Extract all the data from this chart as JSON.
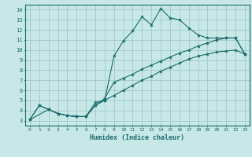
{
  "title": "",
  "xlabel": "Humidex (Indice chaleur)",
  "bg_color": "#c8e8e8",
  "grid_color": "#a0c8c8",
  "line_color": "#1a6b6b",
  "spine_color": "#1a6b6b",
  "xlim": [
    -0.5,
    23.5
  ],
  "ylim": [
    2.5,
    14.5
  ],
  "xticks": [
    0,
    1,
    2,
    3,
    4,
    5,
    6,
    7,
    8,
    9,
    10,
    11,
    12,
    13,
    14,
    15,
    16,
    17,
    18,
    19,
    20,
    21,
    22,
    23
  ],
  "yticks": [
    3,
    4,
    5,
    6,
    7,
    8,
    9,
    10,
    11,
    12,
    13,
    14
  ],
  "line1_x": [
    0,
    1,
    2,
    3,
    4,
    5,
    6,
    7,
    8,
    9,
    10,
    11,
    12,
    13,
    14,
    15,
    16,
    17,
    18,
    19,
    20,
    21,
    22,
    23
  ],
  "line1_y": [
    3.1,
    4.5,
    4.1,
    3.7,
    3.5,
    3.4,
    3.4,
    4.8,
    5.0,
    9.4,
    10.9,
    11.9,
    13.3,
    12.5,
    14.1,
    13.2,
    13.0,
    12.2,
    11.5,
    11.2,
    11.2,
    11.2,
    11.2,
    9.6
  ],
  "line2_x": [
    0,
    1,
    2,
    3,
    4,
    5,
    6,
    7,
    8,
    9,
    10,
    11,
    12,
    13,
    14,
    15,
    16,
    17,
    18,
    19,
    20,
    21,
    22,
    23
  ],
  "line2_y": [
    3.1,
    4.5,
    4.1,
    3.7,
    3.5,
    3.4,
    3.4,
    4.5,
    5.2,
    6.8,
    7.2,
    7.6,
    8.1,
    8.5,
    8.9,
    9.3,
    9.7,
    10.0,
    10.4,
    10.7,
    11.0,
    11.2,
    11.2,
    9.6
  ],
  "line3_x": [
    0,
    2,
    3,
    4,
    5,
    6,
    7,
    8,
    9,
    10,
    11,
    12,
    13,
    14,
    15,
    16,
    17,
    18,
    19,
    20,
    21,
    22,
    23
  ],
  "line3_y": [
    3.1,
    4.1,
    3.7,
    3.5,
    3.4,
    3.4,
    4.5,
    5.0,
    5.5,
    6.0,
    6.5,
    7.0,
    7.4,
    7.9,
    8.3,
    8.7,
    9.1,
    9.4,
    9.6,
    9.8,
    9.9,
    10.0,
    9.6
  ]
}
